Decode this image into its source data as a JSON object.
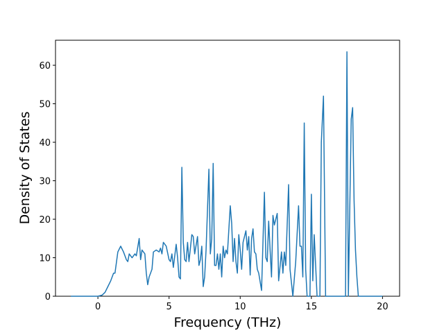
{
  "chart_data": {
    "type": "line",
    "xlabel": "Frequency (THz)",
    "ylabel": "Density of States",
    "xlim": [
      -2.98,
      21.2
    ],
    "ylim": [
      0,
      66.5
    ],
    "xticks": [
      0,
      5,
      10,
      15,
      20
    ],
    "yticks": [
      0,
      10,
      20,
      30,
      40,
      50,
      60
    ],
    "series": [
      {
        "color": "#1f77b4",
        "x": [
          -1.9,
          0,
          0.3,
          0.5,
          0.7,
          0.9,
          1.1,
          1.2,
          1.4,
          1.6,
          1.8,
          2.0,
          2.1,
          2.2,
          2.4,
          2.6,
          2.7,
          2.9,
          3.0,
          3.1,
          3.3,
          3.4,
          3.5,
          3.6,
          3.8,
          3.9,
          4.1,
          4.3,
          4.4,
          4.5,
          4.6,
          4.8,
          5.0,
          5.1,
          5.2,
          5.3,
          5.5,
          5.6,
          5.7,
          5.8,
          5.9,
          6.0,
          6.1,
          6.2,
          6.3,
          6.4,
          6.6,
          6.7,
          6.8,
          7.0,
          7.1,
          7.2,
          7.3,
          7.4,
          7.5,
          7.6,
          7.8,
          7.9,
          8.0,
          8.1,
          8.2,
          8.3,
          8.4,
          8.5,
          8.6,
          8.7,
          8.8,
          8.9,
          9.0,
          9.1,
          9.3,
          9.4,
          9.5,
          9.6,
          9.7,
          9.8,
          9.9,
          10.0,
          10.1,
          10.2,
          10.4,
          10.5,
          10.6,
          10.7,
          10.8,
          10.9,
          11.0,
          11.1,
          11.2,
          11.3,
          11.5,
          11.7,
          11.8,
          11.9,
          12.0,
          12.1,
          12.2,
          12.3,
          12.4,
          12.6,
          12.7,
          12.9,
          13.0,
          13.1,
          13.2,
          13.4,
          13.5,
          13.7,
          13.9,
          14.1,
          14.2,
          14.3,
          14.4,
          14.5,
          14.6,
          14.7,
          14.9,
          15.0,
          15.1,
          15.2,
          15.4,
          15.6,
          15.7,
          15.85,
          16.0,
          17.4,
          17.5,
          17.6,
          17.8,
          17.9,
          18.0,
          18.1,
          18.2,
          18.3,
          20
        ],
        "values": [
          0,
          0,
          0.3,
          1,
          2.5,
          4,
          6,
          6,
          11.5,
          13,
          11.5,
          9.5,
          9,
          11,
          10,
          11,
          10.5,
          15,
          9.5,
          12,
          11,
          6,
          3,
          5,
          7,
          11.5,
          12,
          11.5,
          12.5,
          11,
          14,
          13,
          9.5,
          9,
          11,
          7.5,
          13.5,
          10,
          5,
          4.5,
          33.5,
          14,
          9.5,
          9,
          14,
          9,
          16,
          15.5,
          11,
          15.5,
          8,
          9.5,
          13,
          2.5,
          5,
          12,
          33,
          11,
          15,
          34.5,
          8,
          8,
          11,
          7,
          11,
          5,
          13,
          10,
          12,
          11,
          23.5,
          19,
          9,
          15,
          9,
          6,
          16,
          12,
          7,
          14,
          17,
          12,
          15.5,
          5.5,
          15,
          17.5,
          11.5,
          11,
          7,
          6,
          1.5,
          27,
          10,
          9,
          19.5,
          12,
          5,
          21,
          18.5,
          21.5,
          4,
          11.5,
          6,
          11.5,
          8,
          29,
          7,
          0,
          9,
          23.5,
          13,
          13,
          5,
          45,
          7,
          0,
          0,
          26.5,
          4,
          16,
          0,
          0,
          40,
          52,
          0,
          0,
          63.5,
          0,
          46,
          49,
          25,
          12,
          5,
          0,
          0
        ]
      }
    ]
  }
}
